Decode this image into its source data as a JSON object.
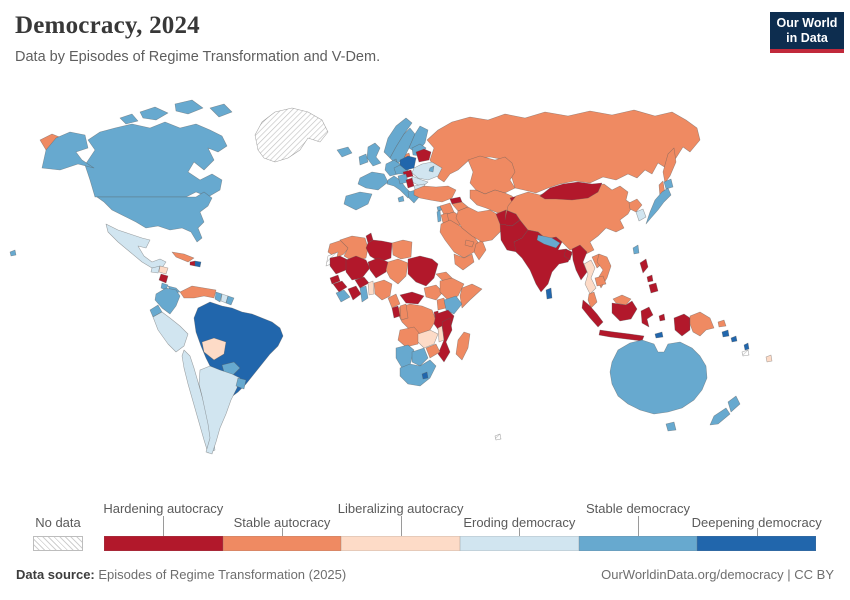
{
  "header": {
    "title": "Democracy, 2024",
    "subtitle": "Data by Episodes of Regime Transformation and V-Dem.",
    "logo_line1": "Our World",
    "logo_line2": "in Data",
    "logo_bg": "#0d2d4f",
    "logo_stripe": "#c1293b"
  },
  "legend": {
    "no_data_label": "No data",
    "categories": [
      {
        "id": "hardening_autocracy",
        "label": "Hardening autocracy",
        "color": "#b2182b",
        "row": "top"
      },
      {
        "id": "stable_autocracy",
        "label": "Stable autocracy",
        "color": "#ef8a62",
        "row": "bottom"
      },
      {
        "id": "liberalizing_autocracy",
        "label": "Liberalizing autocracy",
        "color": "#fddbc7",
        "row": "top"
      },
      {
        "id": "eroding_democracy",
        "label": "Eroding democracy",
        "color": "#d1e5f0",
        "row": "bottom"
      },
      {
        "id": "stable_democracy",
        "label": "Stable democracy",
        "color": "#67a9cf",
        "row": "top"
      },
      {
        "id": "deepening_democracy",
        "label": "Deepening democracy",
        "color": "#2166ac",
        "row": "bottom"
      }
    ]
  },
  "map": {
    "countries": {
      "russia": "stable_autocracy",
      "chukotka": "stable_autocracy",
      "kamchatka": "stable_autocracy",
      "sakhalin": "stable_autocracy",
      "kaliningrad": "stable_autocracy",
      "canada": "stable_democracy",
      "alaska": "stable_democracy",
      "usa": "stable_democracy",
      "hawaii": "stable_democracy",
      "greenland": "no_data",
      "mexico": "eroding_democracy",
      "guatemala": "eroding_democracy",
      "honduras": "liberalizing_autocracy",
      "nicaragua": "hardening_autocracy",
      "costa_rica": "stable_democracy",
      "panama": "stable_democracy",
      "cuba": "stable_autocracy",
      "haiti": "hardening_autocracy",
      "dominican_republic": "deepening_democracy",
      "colombia": "stable_democracy",
      "venezuela": "stable_autocracy",
      "guyana": "stable_democracy",
      "suriname": "eroding_democracy",
      "french_guiana": "stable_democracy",
      "ecuador": "stable_democracy",
      "peru": "eroding_democracy",
      "brazil": "deepening_democracy",
      "bolivia": "liberalizing_autocracy",
      "paraguay": "stable_democracy",
      "chile": "eroding_democracy",
      "argentina": "eroding_democracy",
      "uruguay": "stable_democracy",
      "iceland": "stable_democracy",
      "ireland": "stable_democracy",
      "uk": "stable_democracy",
      "norway": "stable_democracy",
      "sweden": "stable_democracy",
      "finland": "stable_democracy",
      "denmark": "stable_democracy",
      "france": "stable_democracy",
      "spain_portugal": "stable_democracy",
      "germany": "stable_democracy",
      "central_europe": "stable_democracy",
      "italy": "stable_democracy",
      "croatia_bosnia": "stable_democracy",
      "greece": "stable_democracy",
      "baltics": "stable_democracy",
      "moldova": "stable_democracy",
      "cyprus": "stable_democracy",
      "poland": "deepening_democracy",
      "belarus": "hardening_autocracy",
      "ukraine": "eroding_democracy",
      "romania": "eroding_democracy",
      "hungary": "hardening_autocracy",
      "serbia": "hardening_autocracy",
      "bulgaria": "eroding_democracy",
      "turkey": "stable_autocracy",
      "georgia": "hardening_autocracy",
      "azerbaijan_armenia": "stable_autocracy",
      "syria": "stable_autocracy",
      "iraq": "stable_autocracy",
      "iran": "stable_autocracy",
      "israel": "stable_democracy",
      "jordan": "stable_autocracy",
      "saudi_arabia": "stable_autocracy",
      "yemen": "stable_autocracy",
      "oman": "stable_autocracy",
      "uae": "stable_autocracy",
      "egypt": "stable_autocracy",
      "morocco": "stable_autocracy",
      "western_sahara": "no_data",
      "algeria": "stable_autocracy",
      "tunisia": "hardening_autocracy",
      "libya": "hardening_autocracy",
      "mauritania": "hardening_autocracy",
      "mali": "hardening_autocracy",
      "niger": "hardening_autocracy",
      "chad": "stable_autocracy",
      "sudan": "hardening_autocracy",
      "eritrea_djibouti": "stable_autocracy",
      "senegal": "hardening_autocracy",
      "guinea": "hardening_autocracy",
      "sierra_leone_liberia": "stable_democracy",
      "ivory_coast": "hardening_autocracy",
      "ghana": "stable_democracy",
      "burkina_faso": "hardening_autocracy",
      "benin_togo": "liberalizing_autocracy",
      "nigeria": "stable_autocracy",
      "cameroon": "stable_autocracy",
      "car": "hardening_autocracy",
      "south_sudan": "stable_autocracy",
      "ethiopia": "stable_autocracy",
      "somalia": "stable_autocracy",
      "uganda": "stable_autocracy",
      "kenya": "stable_democracy",
      "drc": "stable_autocracy",
      "congo": "stable_autocracy",
      "gabon": "hardening_autocracy",
      "rwanda_burundi": "hardening_autocracy",
      "tanzania": "hardening_autocracy",
      "angola": "stable_autocracy",
      "zambia": "liberalizing_autocracy",
      "malawi": "liberalizing_autocracy",
      "mozambique": "hardening_autocracy",
      "zimbabwe": "stable_autocracy",
      "namibia": "stable_democracy",
      "botswana": "stable_democracy",
      "south_africa": "stable_democracy",
      "lesotho": "deepening_democracy",
      "madagascar": "stable_autocracy",
      "kazakhstan": "stable_autocracy",
      "central_asia": "stable_autocracy",
      "kyrgyzstan": "hardening_autocracy",
      "afghanistan": "hardening_autocracy",
      "pakistan": "hardening_autocracy",
      "india": "hardening_autocracy",
      "nepal": "stable_democracy",
      "bangladesh": "hardening_autocracy",
      "sri_lanka": "deepening_democracy",
      "myanmar": "hardening_autocracy",
      "thailand": "liberalizing_autocracy",
      "laos": "stable_autocracy",
      "vietnam": "stable_autocracy",
      "cambodia": "stable_autocracy",
      "malaysia": "stable_autocracy",
      "indonesia": "hardening_autocracy",
      "east_timor": "deepening_democracy",
      "philippines": "hardening_autocracy",
      "china": "stable_autocracy",
      "mongolia": "hardening_autocracy",
      "north_korea": "stable_autocracy",
      "south_korea": "eroding_democracy",
      "japan": "stable_democracy",
      "taiwan": "stable_democracy",
      "png": "stable_autocracy",
      "solomon_islands": "deepening_democracy",
      "vanuatu": "deepening_democracy",
      "fiji": "liberalizing_autocracy",
      "new_caledonia": "no_data",
      "australia": "stable_democracy",
      "new_zealand": "stable_democracy",
      "french_southern": "no_data"
    }
  },
  "footer": {
    "source_label": "Data source:",
    "source": "Episodes of Regime Transformation (2025)",
    "right": "OurWorldinData.org/democracy | CC BY"
  }
}
